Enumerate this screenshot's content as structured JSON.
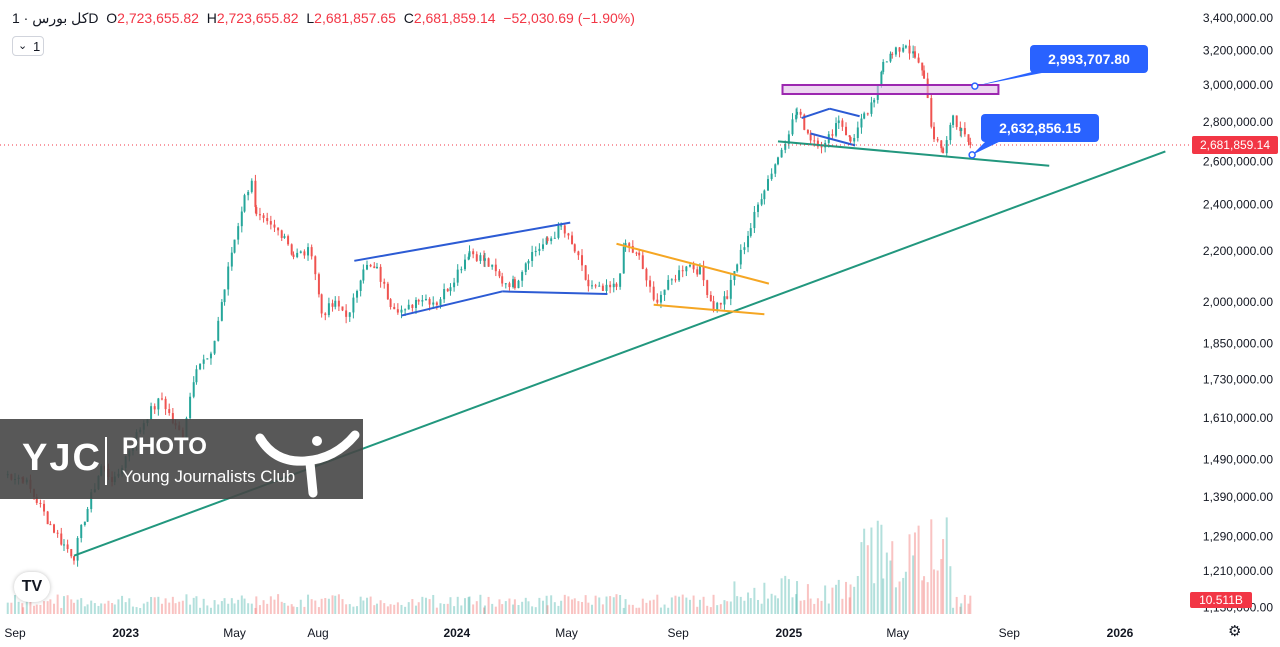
{
  "header": {
    "symbol": "کل بورس · 1D",
    "open_label": "O",
    "open": "2,723,655.82",
    "high_label": "H",
    "high": "2,723,655.82",
    "low_label": "L",
    "low": "2,681,857.65",
    "close_label": "C",
    "close": "2,681,859.14",
    "change": "−52,030.69 (−1.90%)"
  },
  "interval": {
    "chevron": "⌄",
    "value": "1"
  },
  "watermark": {
    "brand": "YJC",
    "photo": "PHOTO",
    "club": "Young Journalists Club"
  },
  "logo": {
    "text": "TV",
    "icon": "tradingview-logo-icon"
  },
  "settings": {
    "icon": "gear-icon",
    "glyph": "⚙"
  },
  "colors": {
    "up": "#26a69a",
    "down": "#ef5350",
    "trend_green": "#22977e",
    "channel_blue": "#2c5bd4",
    "wedge_orange": "#f5a623",
    "zone_purple": "#9c27b0",
    "callout_blue": "#2962ff",
    "price_red": "#f23645"
  },
  "chart_data": {
    "type": "candlestick",
    "scale": "log",
    "x_axis_labels": [
      "Sep",
      "2023",
      "May",
      "Aug",
      "2024",
      "May",
      "Sep",
      "2025",
      "May",
      "Sep",
      "2026"
    ],
    "x_axis_dates": [
      "2022-09-01",
      "2023-01-01",
      "2023-05-01",
      "2023-08-01",
      "2024-01-01",
      "2024-05-01",
      "2024-09-01",
      "2025-01-01",
      "2025-05-01",
      "2025-09-01",
      "2026-01-01"
    ],
    "y_axis_labels": [
      3400000,
      3200000,
      3000000,
      2800000,
      2600000,
      2400000,
      2200000,
      2000000,
      1850000,
      1730000,
      1610000,
      1490000,
      1390000,
      1290000,
      1210000,
      1130000
    ],
    "y_axis_label_text": [
      "3,400,000.00",
      "3,200,000.00",
      "3,000,000.00",
      "2,800,000.00",
      "2,600,000.00",
      "2,400,000.00",
      "2,200,000.00",
      "2,000,000.00",
      "1,850,000.00",
      "1,730,000.00",
      "1,610,000.00",
      "1,490,000.00",
      "1,390,000.00",
      "1,290,000.00",
      "1,210,000.00",
      "1,130,000.00"
    ],
    "price_path": [
      [
        "2022-08-20",
        1450000
      ],
      [
        "2022-09-10",
        1440000
      ],
      [
        "2022-09-25",
        1380000
      ],
      [
        "2022-10-10",
        1320000
      ],
      [
        "2022-10-25",
        1270000
      ],
      [
        "2022-11-05",
        1245000
      ],
      [
        "2022-11-20",
        1360000
      ],
      [
        "2022-12-05",
        1470000
      ],
      [
        "2022-12-20",
        1430000
      ],
      [
        "2023-01-05",
        1520000
      ],
      [
        "2023-01-25",
        1620000
      ],
      [
        "2023-02-10",
        1670000
      ],
      [
        "2023-02-25",
        1580000
      ],
      [
        "2023-03-05",
        1560000
      ],
      [
        "2023-03-20",
        1780000
      ],
      [
        "2023-04-05",
        1800000
      ],
      [
        "2023-04-20",
        2050000
      ],
      [
        "2023-05-01",
        2250000
      ],
      [
        "2023-05-12",
        2430000
      ],
      [
        "2023-05-20",
        2520000
      ],
      [
        "2023-05-25",
        2340000
      ],
      [
        "2023-06-10",
        2300000
      ],
      [
        "2023-06-25",
        2270000
      ],
      [
        "2023-07-05",
        2180000
      ],
      [
        "2023-07-25",
        2200000
      ],
      [
        "2023-08-05",
        1960000
      ],
      [
        "2023-08-20",
        1990000
      ],
      [
        "2023-09-05",
        1950000
      ],
      [
        "2023-09-20",
        2140000
      ],
      [
        "2023-10-05",
        2120000
      ],
      [
        "2023-10-20",
        2000000
      ],
      [
        "2023-11-05",
        1960000
      ],
      [
        "2023-11-20",
        2020000
      ],
      [
        "2023-12-10",
        2000000
      ],
      [
        "2023-12-25",
        2070000
      ],
      [
        "2024-01-15",
        2200000
      ],
      [
        "2024-02-01",
        2160000
      ],
      [
        "2024-02-20",
        2080000
      ],
      [
        "2024-03-05",
        2070000
      ],
      [
        "2024-03-20",
        2180000
      ],
      [
        "2024-04-10",
        2240000
      ],
      [
        "2024-04-25",
        2300000
      ],
      [
        "2024-05-10",
        2200000
      ],
      [
        "2024-05-25",
        2060000
      ],
      [
        "2024-06-10",
        2040000
      ],
      [
        "2024-06-25",
        2060000
      ],
      [
        "2024-07-05",
        2230000
      ],
      [
        "2024-07-20",
        2170000
      ],
      [
        "2024-08-05",
        2000000
      ],
      [
        "2024-08-25",
        2080000
      ],
      [
        "2024-09-10",
        2150000
      ],
      [
        "2024-09-25",
        2120000
      ],
      [
        "2024-10-10",
        1980000
      ],
      [
        "2024-10-25",
        2020000
      ],
      [
        "2024-11-05",
        2150000
      ],
      [
        "2024-11-20",
        2300000
      ],
      [
        "2024-12-05",
        2480000
      ],
      [
        "2024-12-20",
        2620000
      ],
      [
        "2025-01-01",
        2760000
      ],
      [
        "2025-01-10",
        2850000
      ],
      [
        "2025-01-25",
        2720000
      ],
      [
        "2025-02-10",
        2680000
      ],
      [
        "2025-02-25",
        2820000
      ],
      [
        "2025-03-10",
        2700000
      ],
      [
        "2025-03-25",
        2820000
      ],
      [
        "2025-04-05",
        2900000
      ],
      [
        "2025-04-15",
        3150000
      ],
      [
        "2025-04-25",
        3170000
      ],
      [
        "2025-05-10",
        3240000
      ],
      [
        "2025-05-20",
        3150000
      ],
      [
        "2025-05-30",
        3050000
      ],
      [
        "2025-06-10",
        2700000
      ],
      [
        "2025-06-20",
        2650000
      ],
      [
        "2025-07-01",
        2830000
      ],
      [
        "2025-07-10",
        2750000
      ],
      [
        "2025-07-20",
        2682000
      ]
    ],
    "volume_last": "10.511B",
    "last_price": 2681859.14,
    "last_price_label": "2,681,859.14",
    "drawings": {
      "long_trendline": {
        "from": [
          "2022-11-05",
          1245000
        ],
        "to": [
          "2026-02-20",
          2650000
        ]
      },
      "neckline": {
        "from": [
          "2024-12-20",
          2700000
        ],
        "to": [
          "2025-10-15",
          2580000
        ]
      },
      "channel_2023_upper": {
        "from": [
          "2023-09-10",
          2160000
        ],
        "to": [
          "2024-05-05",
          2320000
        ]
      },
      "channel_2023_lower": {
        "from": [
          "2023-11-01",
          1950000
        ],
        "to": [
          "2024-02-20",
          2040000
        ]
      },
      "channel_2023_lower_ext": {
        "from": [
          "2024-02-20",
          2040000
        ],
        "to": [
          "2024-06-15",
          2030000
        ]
      },
      "channel_2023_left": {
        "from": [
          "2023-11-01",
          1950000
        ],
        "to": [
          "2023-09-10",
          2160000
        ]
      },
      "wedge_upper": {
        "from": [
          "2024-06-25",
          2230000
        ],
        "to": [
          "2024-12-10",
          2070000
        ]
      },
      "wedge_lower": {
        "from": [
          "2024-08-05",
          1990000
        ],
        "to": [
          "2024-12-05",
          1955000
        ]
      },
      "triangle_upper": {
        "from": [
          "2025-01-15",
          2820000
        ],
        "to": [
          "2025-02-15",
          2870000
        ]
      },
      "triangle_upper2": {
        "from": [
          "2025-02-15",
          2870000
        ],
        "to": [
          "2025-03-20",
          2830000
        ]
      },
      "triangle_lower": {
        "from": [
          "2025-01-25",
          2740000
        ],
        "to": [
          "2025-03-15",
          2680000
        ]
      },
      "zone": {
        "from_date": "2024-12-25",
        "to_date": "2025-08-20",
        "top": 3000000,
        "bottom": 2950000
      },
      "callout_high": {
        "label": "2,993,707.80",
        "value": 2993707.8,
        "anchor_date": "2025-07-25"
      },
      "callout_low": {
        "label": "2,632,856.15",
        "value": 2632856.15,
        "anchor_date": "2025-07-22"
      }
    }
  }
}
